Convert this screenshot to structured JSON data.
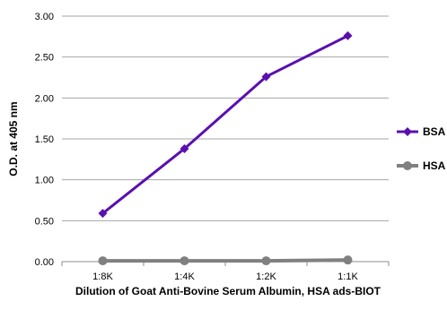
{
  "chart_data": {
    "type": "line",
    "title": "",
    "xlabel": "Dilution of Goat Anti-Bovine Serum Albumin, HSA ads-BIOT",
    "ylabel": "O.D. at 405 nm",
    "categories": [
      "1:8K",
      "1:4K",
      "1:2K",
      "1:1K"
    ],
    "ylim": [
      0,
      3.0
    ],
    "yticks": [
      "0.00",
      "0.50",
      "1.00",
      "1.50",
      "2.00",
      "2.50",
      "3.00"
    ],
    "grid": true,
    "legend_position": "right",
    "series": [
      {
        "name": "BSA",
        "color": "#5a10b0",
        "marker": "diamond",
        "values": [
          0.59,
          1.38,
          2.26,
          2.76
        ]
      },
      {
        "name": "HSA",
        "color": "#808080",
        "marker": "circle",
        "values": [
          0.01,
          0.01,
          0.01,
          0.02
        ]
      }
    ]
  }
}
